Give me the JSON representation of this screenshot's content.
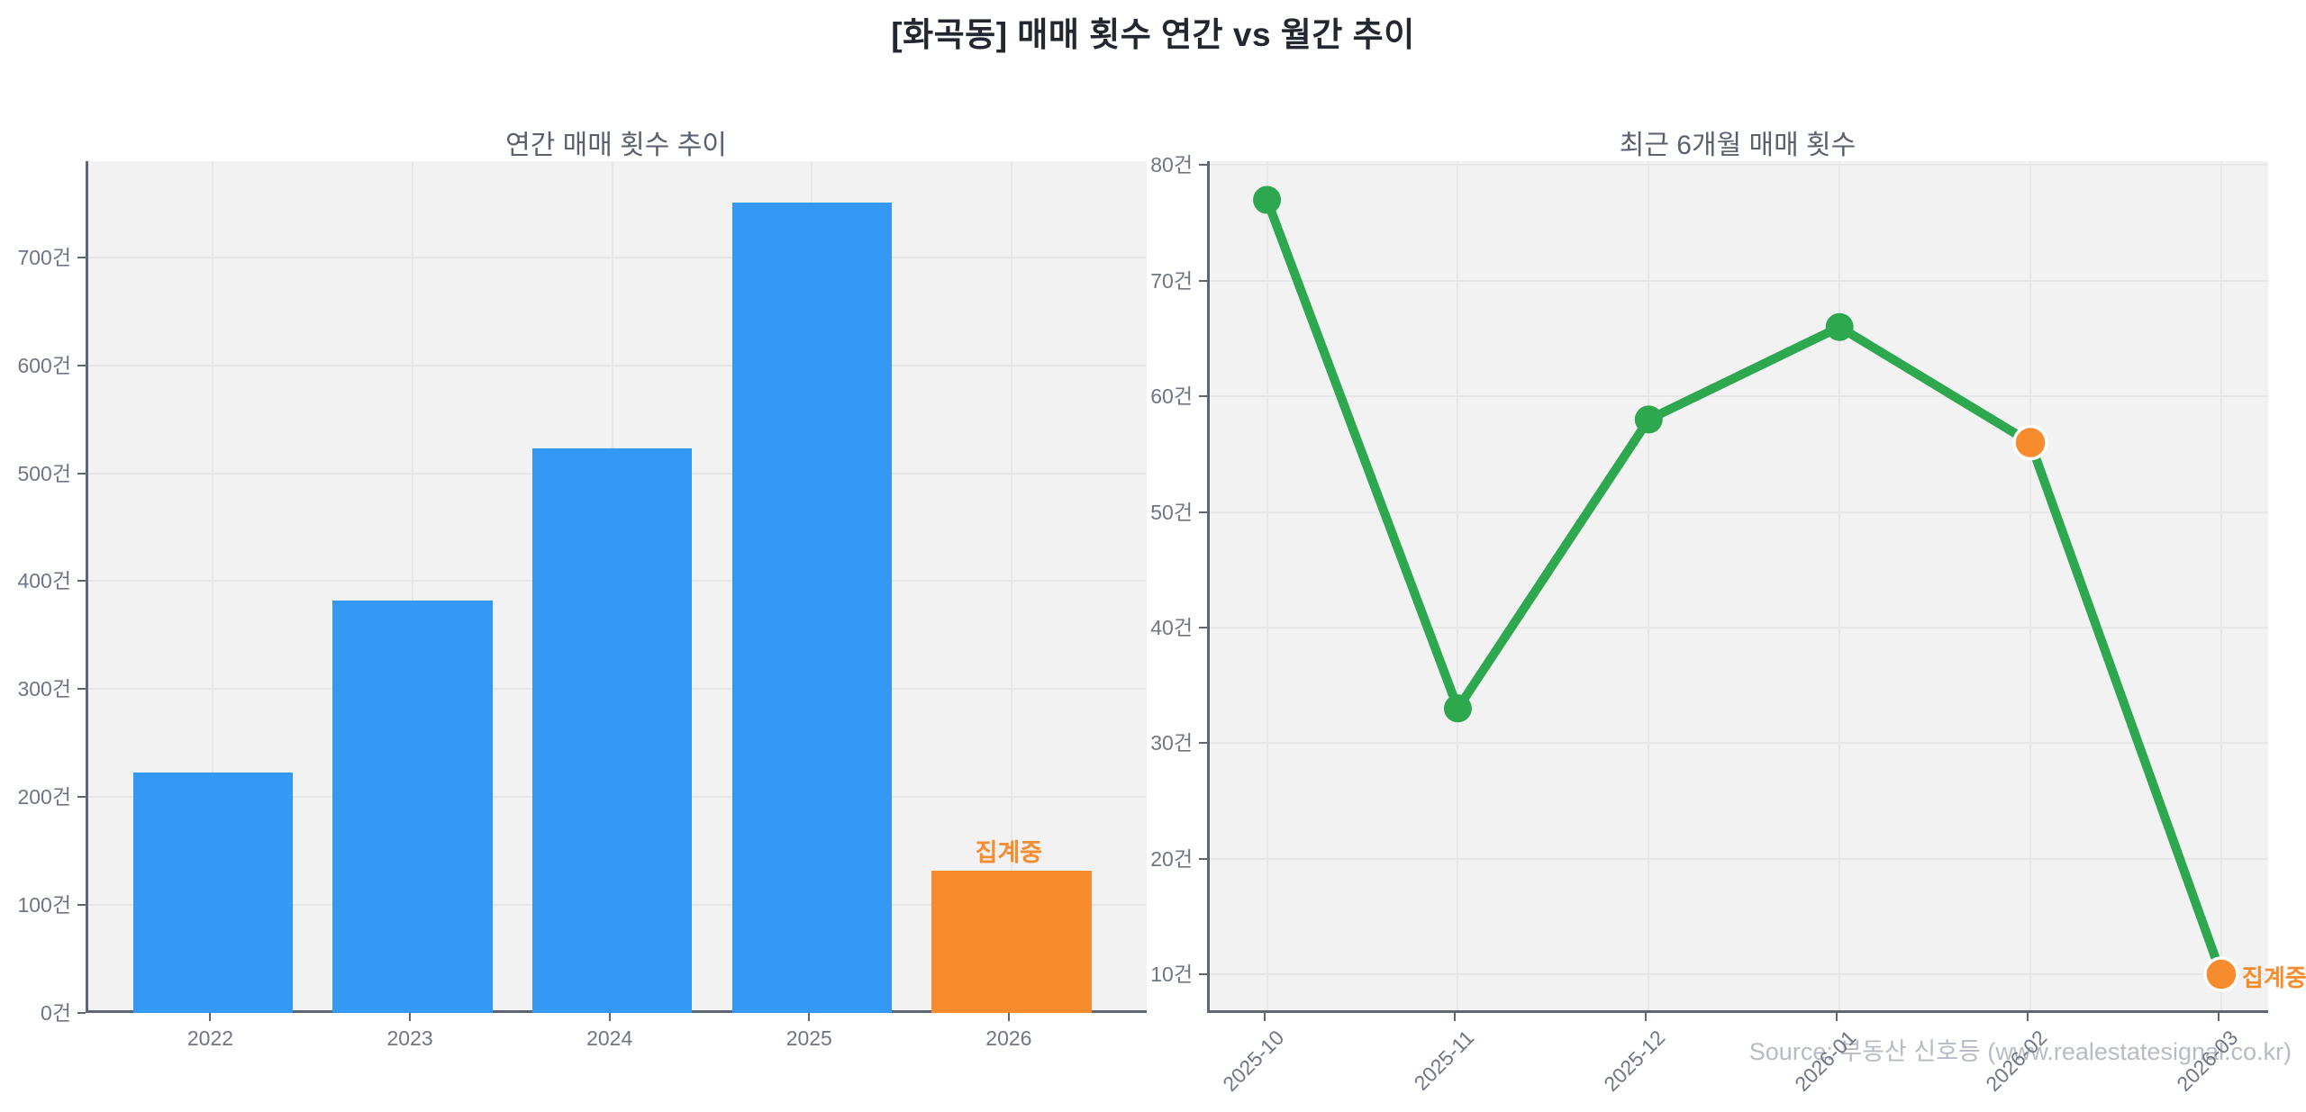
{
  "page": {
    "main_title": "[화곡동] 매매 횟수 연간 vs 월간 추이",
    "watermark": "Source: 부동산 신호등 (www.realestatesignal.co.kr)"
  },
  "colors": {
    "bar_blue": "#3498f5",
    "accent_orange": "#f78c2e",
    "line_green": "#2ea84e",
    "marker_edge_white": "#ffffff"
  },
  "chart_data": [
    {
      "type": "bar",
      "title": "연간 매매 횟수 추이",
      "categories": [
        "2022",
        "2023",
        "2024",
        "2025",
        "2026"
      ],
      "values": [
        223,
        382,
        523,
        751,
        132
      ],
      "status": [
        "final",
        "final",
        "final",
        "final",
        "collecting"
      ],
      "annotation": {
        "text": "집계중",
        "index": 4
      },
      "unit": "건",
      "yticks": [
        0,
        100,
        200,
        300,
        400,
        500,
        600,
        700
      ],
      "ylim": [
        0,
        789
      ],
      "grid": true,
      "legend": null
    },
    {
      "type": "line",
      "title": "최근 6개월 매매 횟수",
      "x": [
        "2025-10",
        "2025-11",
        "2025-12",
        "2026-01",
        "2026-02",
        "2026-03"
      ],
      "values": [
        77,
        33,
        58,
        66,
        56,
        10
      ],
      "highlight": [
        false,
        false,
        false,
        false,
        true,
        true
      ],
      "annotation": {
        "text": "집계중",
        "index": 5
      },
      "unit": "건",
      "yticks": [
        10,
        20,
        30,
        40,
        50,
        60,
        70,
        80
      ],
      "ylim": [
        6.65,
        80.35
      ],
      "grid": true,
      "legend": null
    }
  ]
}
